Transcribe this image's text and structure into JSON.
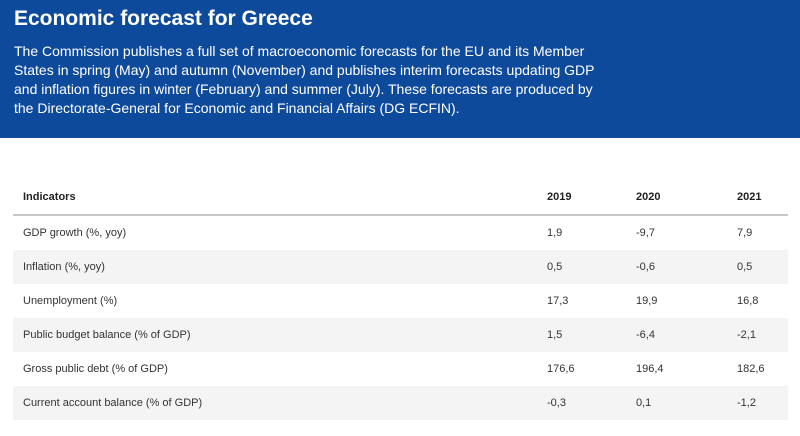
{
  "banner": {
    "title": "Economic forecast for Greece",
    "description": "The Commission publishes a full set of macroeconomic forecasts for the EU and its Member States in spring (May) and autumn (November) and publishes interim forecasts updating GDP and inflation figures in winter (February) and summer (July). These forecasts are produced by the Directorate-General for Economic and Financial Affairs (DG ECFIN).",
    "background_color": "#0e4a9c"
  },
  "table": {
    "headers": [
      "Indicators",
      "2019",
      "2020",
      "2021"
    ],
    "rows": [
      [
        "GDP growth (%, yoy)",
        "1,9",
        "-9,7",
        "7,9"
      ],
      [
        "Inflation (%, yoy)",
        "0,5",
        "-0,6",
        "0,5"
      ],
      [
        "Unemployment (%)",
        "17,3",
        "19,9",
        "16,8"
      ],
      [
        "Public budget balance (% of GDP)",
        "1,5",
        "-6,4",
        "-2,1"
      ],
      [
        "Gross public debt (% of GDP)",
        "176,6",
        "196,4",
        "182,6"
      ],
      [
        "Current account balance (% of GDP)",
        "-0,3",
        "0,1",
        "-1,2"
      ]
    ]
  }
}
